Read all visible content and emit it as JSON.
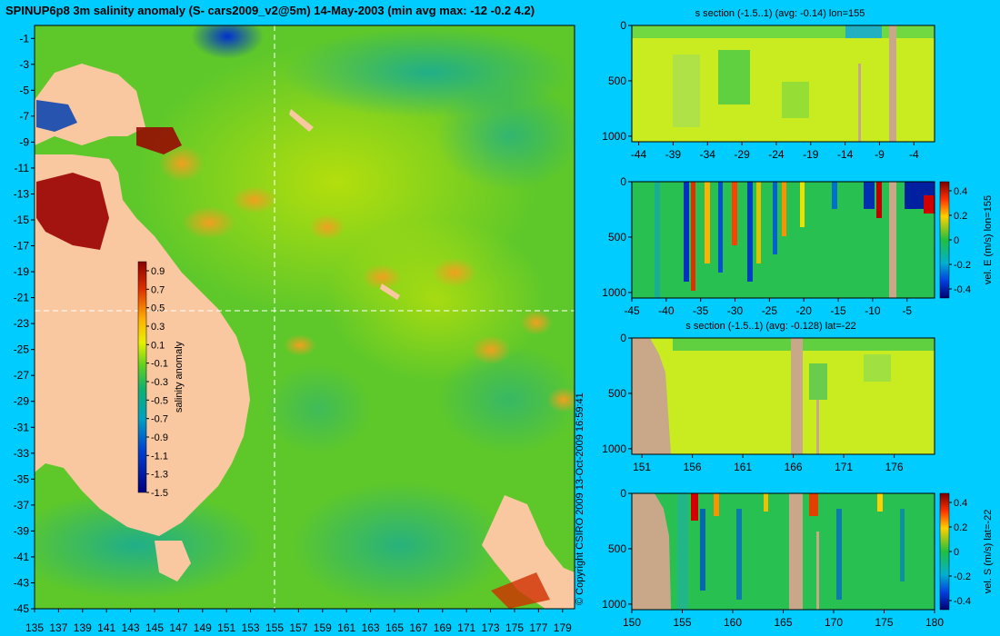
{
  "title": "SPINUP6p8 3m salinity anomaly (S- cars2009_v2@5m) 14-May-2003 (min avg max: -12 -0.2 4.2)",
  "copyright": "© Copyright CSIRO 2009   13-Oct-2009 16:59:41",
  "colors": {
    "background": "#00ccff",
    "land": "#fac8a0",
    "section_land": "#c8a888"
  },
  "chart_data": [
    {
      "type": "heatmap",
      "title": "SPINUP6p8 3m salinity anomaly (S- cars2009_v2@5m) 14-May-2003 (min avg max: -12 -0.2 4.2)",
      "x_ticks": [
        "135",
        "137",
        "139",
        "141",
        "143",
        "145",
        "147",
        "149",
        "151",
        "153",
        "155",
        "157",
        "159",
        "161",
        "163",
        "165",
        "167",
        "169",
        "171",
        "173",
        "175",
        "177",
        "179"
      ],
      "y_ticks": [
        "-1",
        "-3",
        "-5",
        "-7",
        "-9",
        "-11",
        "-13",
        "-15",
        "-17",
        "-19",
        "-21",
        "-23",
        "-25",
        "-27",
        "-29",
        "-31",
        "-33",
        "-35",
        "-37",
        "-39",
        "-41",
        "-43",
        "-45"
      ],
      "xlim": [
        135,
        180
      ],
      "ylim": [
        -45,
        0
      ],
      "crosshair": {
        "lon": 155,
        "lat": -22
      },
      "colorbar": {
        "label": "salinity anomaly",
        "ticks": [
          "0.9",
          "0.7",
          "0.5",
          "0.3",
          "0.1",
          "-0.1",
          "-0.3",
          "-0.5",
          "-0.7",
          "-0.9",
          "-1.1",
          "-1.3",
          "-1.5"
        ]
      },
      "stats": {
        "min": -12,
        "avg": -0.2,
        "max": 4.2
      }
    },
    {
      "type": "heatmap",
      "title": "s section (-1.5..1) (avg: -0.14) lon=155",
      "x_ticks": [
        "-44",
        "-39",
        "-34",
        "-29",
        "-24",
        "-19",
        "-14",
        "-9",
        "-4"
      ],
      "y_ticks": [
        "0",
        "500",
        "1000"
      ],
      "xlim": [
        -45,
        -1
      ],
      "ylim": [
        1050,
        0
      ]
    },
    {
      "type": "heatmap",
      "title": "",
      "x_ticks": [
        "-45",
        "-40",
        "-35",
        "-30",
        "-25",
        "-20",
        "-15",
        "-10",
        "-5"
      ],
      "y_ticks": [
        "0",
        "500",
        "1000"
      ],
      "xlim": [
        -45,
        -1
      ],
      "ylim": [
        1050,
        0
      ],
      "colorbar": {
        "label": "vel. E (m/s) lon=155",
        "ticks": [
          "0.4",
          "0.2",
          "0",
          "-0.2",
          "-0.4"
        ]
      }
    },
    {
      "type": "heatmap",
      "title": "s section (-1.5..1) (avg: -0.128) lat=-22",
      "x_ticks": [
        "151",
        "156",
        "161",
        "166",
        "171",
        "176"
      ],
      "y_ticks": [
        "0",
        "500",
        "1000"
      ],
      "xlim": [
        150,
        180
      ],
      "ylim": [
        1050,
        0
      ]
    },
    {
      "type": "heatmap",
      "title": "",
      "x_ticks": [
        "150",
        "155",
        "160",
        "165",
        "170",
        "175",
        "180"
      ],
      "y_ticks": [
        "0",
        "500",
        "1000"
      ],
      "xlim": [
        150,
        180
      ],
      "ylim": [
        1050,
        0
      ],
      "colorbar": {
        "label": "vel. S (m/s) lat=-22",
        "ticks": [
          "0.4",
          "0.2",
          "0",
          "-0.2",
          "-0.4"
        ]
      }
    }
  ]
}
